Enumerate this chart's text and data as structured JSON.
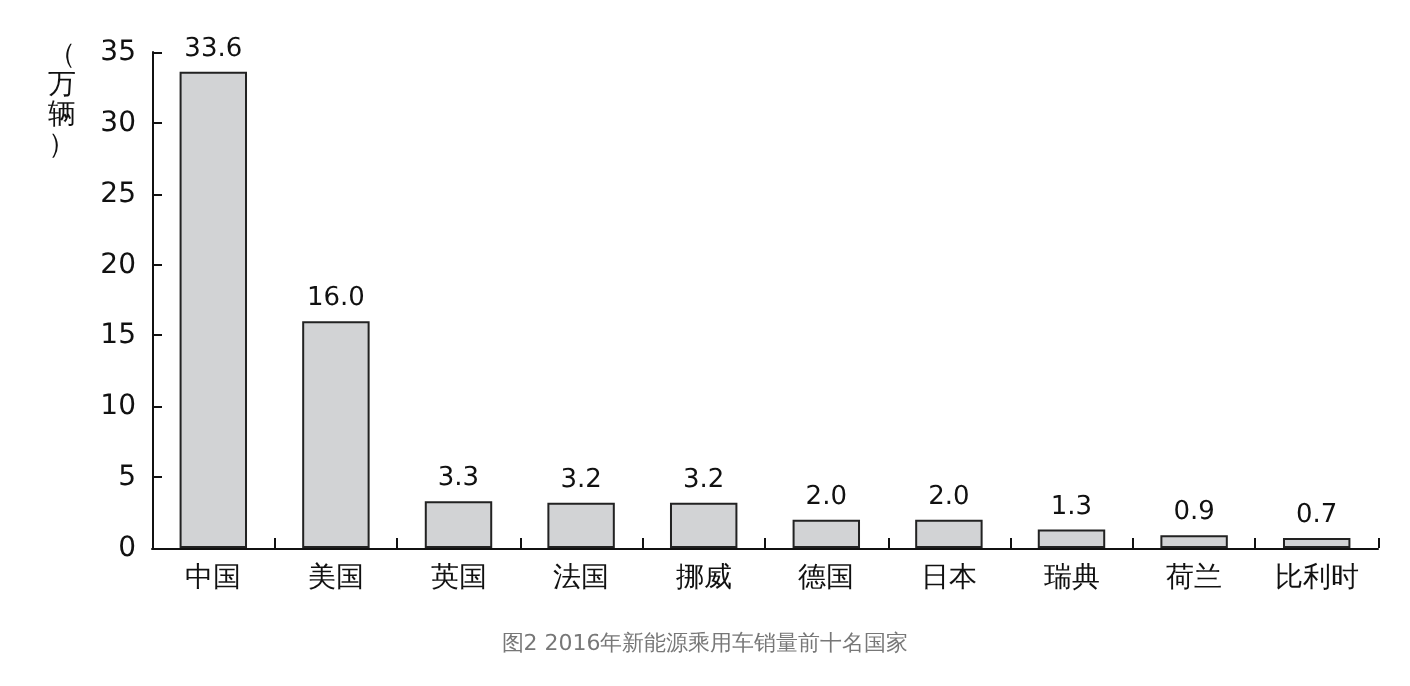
{
  "chart_data": {
    "type": "bar",
    "ylabel": "（万辆）",
    "annotations": [
      "图2 2016年新能源乘用车销量前十名国家"
    ],
    "categories": [
      "中国",
      "美国",
      "英国",
      "法国",
      "挪威",
      "德国",
      "日本",
      "瑞典",
      "荷兰",
      "比利时"
    ],
    "values": [
      33.6,
      16.0,
      3.3,
      3.2,
      3.2,
      2.0,
      2.0,
      1.3,
      0.9,
      0.7
    ],
    "value_labels": [
      "33.6",
      "16.0",
      "3.3",
      "3.2",
      "3.2",
      "2.0",
      "2.0",
      "1.3",
      "0.9",
      "0.7"
    ],
    "color": "#d2d3d5",
    "ylim": [
      0,
      35
    ],
    "yticks": [
      0,
      5,
      10,
      15,
      20,
      25,
      30,
      35
    ],
    "grid": false
  }
}
